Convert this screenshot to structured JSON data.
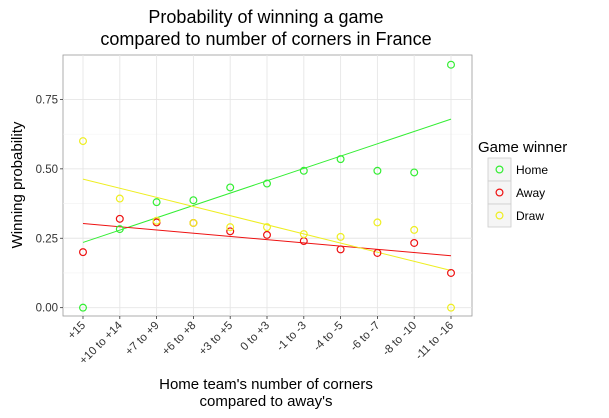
{
  "chart_data": {
    "type": "scatter",
    "title": [
      "Probability of winning a game",
      "compared to number of corners in France"
    ],
    "xlabel": [
      "Home team's number of corners",
      "compared to away's"
    ],
    "ylabel": "Winning probability",
    "categories": [
      "+15",
      "+10 to +14",
      "+7 to +9",
      "+6 to +8",
      "+3 to +5",
      "0 to +3",
      "-1 to -3",
      "-4 to -5",
      "-6 to -7",
      "-8 to -10",
      "-11 to -16"
    ],
    "y_ticks": [
      "0.00",
      "0.25",
      "0.50",
      "0.75"
    ],
    "ylim": [
      -0.03,
      0.91
    ],
    "grid": true,
    "legend": {
      "title": "Game winner",
      "position": "right"
    },
    "series": [
      {
        "name": "Home",
        "color": "#33ee33",
        "values": [
          0.0,
          0.283,
          0.38,
          0.387,
          0.433,
          0.447,
          0.493,
          0.535,
          0.493,
          0.487,
          0.875
        ],
        "trend": [
          0.235,
          0.679
        ]
      },
      {
        "name": "Away",
        "color": "#ee1111",
        "values": [
          0.2,
          0.32,
          0.307,
          0.305,
          0.275,
          0.262,
          0.24,
          0.21,
          0.197,
          0.233,
          0.125
        ],
        "trend": [
          0.303,
          0.187
        ]
      },
      {
        "name": "Draw",
        "color": "#eeee22",
        "values": [
          0.6,
          0.393,
          0.313,
          0.305,
          0.29,
          0.29,
          0.265,
          0.255,
          0.307,
          0.28,
          0.0
        ],
        "trend": [
          0.463,
          0.134
        ]
      }
    ]
  }
}
